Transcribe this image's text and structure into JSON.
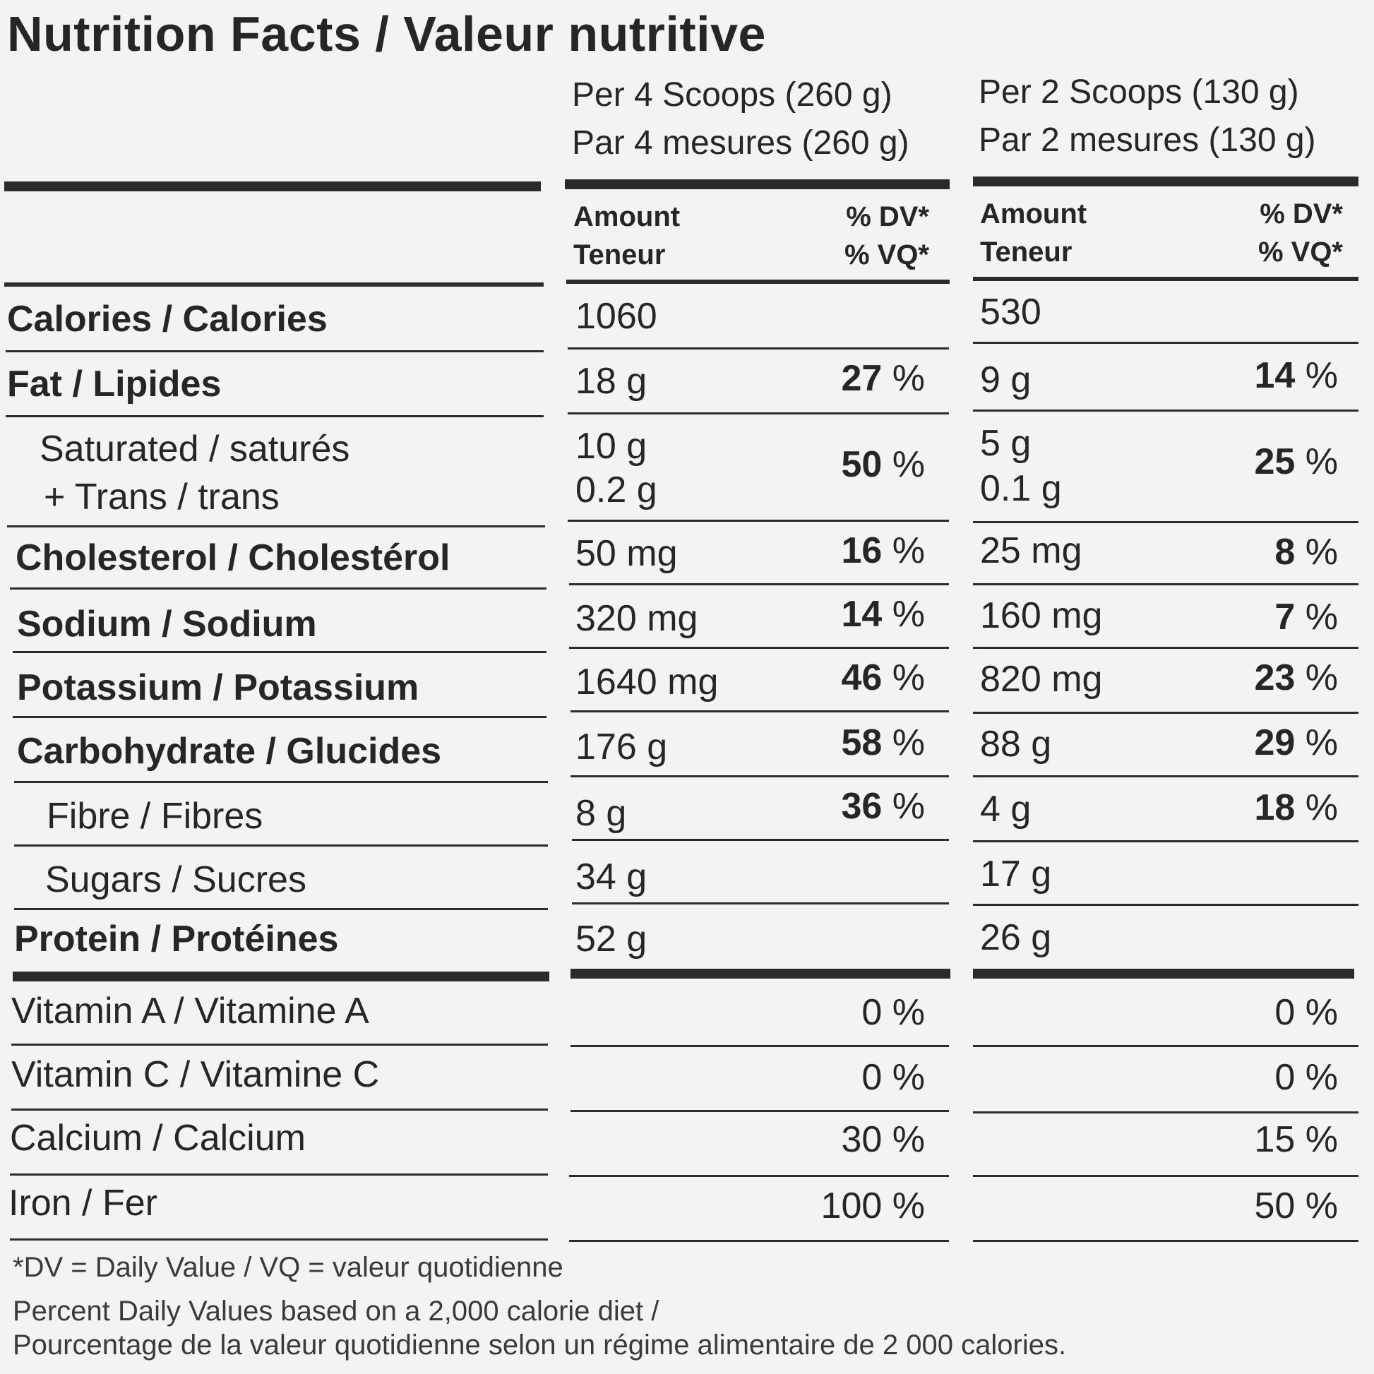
{
  "title": "Nutrition Facts / Valeur nutritive",
  "serving_columns": [
    {
      "line1": "Per 4 Scoops (260 g)",
      "line2": "Par 4 mesures (260 g)"
    },
    {
      "line1": "Per 2 Scoops (130 g)",
      "line2": "Par 2 mesures (130 g)"
    }
  ],
  "headers": {
    "amount_en": "Amount",
    "amount_fr": "Teneur",
    "dv_en": "% DV*",
    "dv_fr": "% VQ*"
  },
  "rows": {
    "calories": {
      "label": "Calories / Calories",
      "amount1": "1060",
      "amount2": "530"
    },
    "fat": {
      "label": "Fat / Lipides",
      "amount1": "18 g",
      "dv1": "27",
      "amount2": "9 g",
      "dv2": "14"
    },
    "saturated": {
      "label_line1": "Saturated / saturés",
      "label_line2": "+ Trans / trans",
      "amount1_line1": "10 g",
      "amount1_line2": "0.2 g",
      "dv1": "50",
      "amount2_line1": "5 g",
      "amount2_line2": "0.1 g",
      "dv2": "25"
    },
    "cholesterol": {
      "label": "Cholesterol / Cholestérol",
      "amount1": "50 mg",
      "dv1": "16",
      "amount2": "25 mg",
      "dv2": "8"
    },
    "sodium": {
      "label": "Sodium / Sodium",
      "amount1": "320 mg",
      "dv1": "14",
      "amount2": "160 mg",
      "dv2": "7"
    },
    "potassium": {
      "label": "Potassium / Potassium",
      "amount1": "1640 mg",
      "dv1": "46",
      "amount2": "820 mg",
      "dv2": "23"
    },
    "carbohydrate": {
      "label": "Carbohydrate / Glucides",
      "amount1": "176 g",
      "dv1": "58",
      "amount2": "88 g",
      "dv2": "29"
    },
    "fibre": {
      "label": "Fibre / Fibres",
      "amount1": "8 g",
      "dv1": "36",
      "amount2": "4 g",
      "dv2": "18"
    },
    "sugars": {
      "label": "Sugars / Sucres",
      "amount1": "34 g",
      "amount2": "17 g"
    },
    "protein": {
      "label": "Protein / Protéines",
      "amount1": "52 g",
      "amount2": "26 g"
    },
    "vitamin_a": {
      "label": "Vitamin A / Vitamine A",
      "dv1": "0",
      "dv2": "0"
    },
    "vitamin_c": {
      "label": "Vitamin C / Vitamine C",
      "dv1": "0",
      "dv2": "0"
    },
    "calcium": {
      "label": "Calcium / Calcium",
      "dv1": "30",
      "dv2": "15"
    },
    "iron": {
      "label": "Iron / Fer",
      "dv1": "100",
      "dv2": "50"
    }
  },
  "percent_sign": "%",
  "footnote": {
    "line1": "*DV = Daily Value / VQ = valeur quotidienne",
    "line2": "Percent Daily Values based on a 2,000 calorie diet /",
    "line3": "Pourcentage de la valeur quotidienne selon un régime alimentaire de 2 000 calories."
  }
}
